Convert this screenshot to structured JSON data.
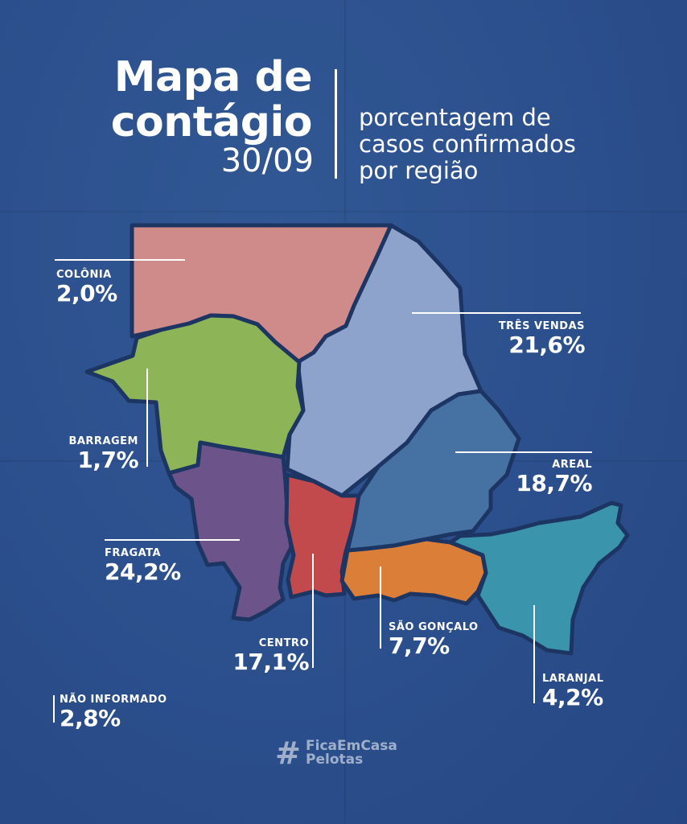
{
  "header": {
    "title_line1": "Mapa de",
    "title_line2": "contágio",
    "date": "30/09",
    "subtitle_line1": "porcentagem de",
    "subtitle_line2": "casos confirmados",
    "subtitle_line3": "por região"
  },
  "regions": {
    "colonia": {
      "name": "COLÔNIA",
      "value": "2,0%",
      "percent": 2.0,
      "color": "#cf8a8a"
    },
    "tres_vendas": {
      "name": "TRÊS VENDAS",
      "value": "21,6%",
      "percent": 21.6,
      "color": "#8ea3cc"
    },
    "barragem": {
      "name": "BARRAGEM",
      "value": "1,7%",
      "percent": 1.7,
      "color": "#8db557"
    },
    "areal": {
      "name": "AREAL",
      "value": "18,7%",
      "percent": 18.7,
      "color": "#4572a3"
    },
    "fragata": {
      "name": "FRAGATA",
      "value": "24,2%",
      "percent": 24.2,
      "color": "#6c548a"
    },
    "centro": {
      "name": "CENTRO",
      "value": "17,1%",
      "percent": 17.1,
      "color": "#c34a4c"
    },
    "sao_goncalo": {
      "name": "SÃO GONÇALO",
      "value": "7,7%",
      "percent": 7.7,
      "color": "#da7e38"
    },
    "laranjal": {
      "name": "LARANJAL",
      "value": "4,2%",
      "percent": 4.2,
      "color": "#3a94ab"
    },
    "nao_informado": {
      "name": "NÃO INFORMADO",
      "value": "2,8%",
      "percent": 2.8
    }
  },
  "footer": {
    "hashtag_line1": "FicaEmCasa",
    "hashtag_line2": "Pelotas"
  }
}
